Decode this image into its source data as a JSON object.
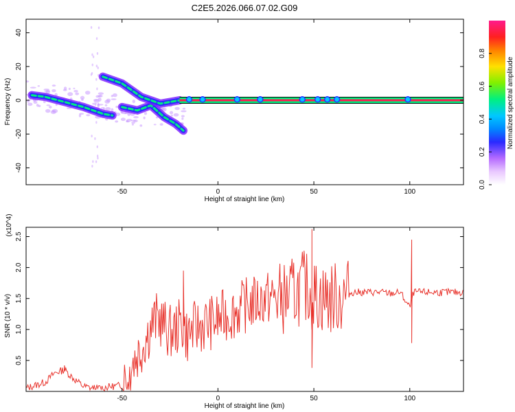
{
  "figure": {
    "title": "C2E5.2026.066.07.02.G09"
  },
  "colors": {
    "snr_line": "#e8322b",
    "colormap": [
      "#ffffff",
      "#e9c8ff",
      "#b66cff",
      "#7a1bff",
      "#2a2aff",
      "#00c8ff",
      "#00f080",
      "#b8f000",
      "#ffb000",
      "#ff2020",
      "#ff1a8c"
    ]
  },
  "chart_data": [
    {
      "type": "heatmap",
      "title": "C2E5.2026.066.07.02.G09",
      "xlabel": "Height of straight line (km)",
      "ylabel": "Frequency (Hz)",
      "xlim": [
        -100,
        128
      ],
      "ylim": [
        -50,
        48
      ],
      "xticks": [
        -50,
        0,
        50,
        100
      ],
      "yticks": [
        -40,
        -20,
        0,
        20,
        40
      ],
      "colorbar": {
        "label": "Normalized spectral amplitude",
        "range": [
          0.0,
          1.0
        ],
        "ticks": [
          0.0,
          0.2,
          0.4,
          0.6,
          0.8
        ]
      },
      "ridges": [
        {
          "name": "main-descending",
          "points": [
            [
              -97,
              3
            ],
            [
              -90,
              2
            ],
            [
              -80,
              -1
            ],
            [
              -70,
              -4
            ],
            [
              -60,
              -8
            ],
            [
              -55,
              -9
            ]
          ]
        },
        {
          "name": "lower-descending",
          "points": [
            [
              -50,
              -4
            ],
            [
              -42,
              -6
            ],
            [
              -35,
              -3
            ],
            [
              -28,
              -10
            ],
            [
              -22,
              -14
            ],
            [
              -18,
              -18
            ]
          ]
        },
        {
          "name": "upper-branch",
          "points": [
            [
              -60,
              14
            ],
            [
              -50,
              10
            ],
            [
              -40,
              2
            ],
            [
              -30,
              -2
            ],
            [
              -20,
              0
            ]
          ]
        },
        {
          "name": "steady-line",
          "points": [
            [
              -20,
              0
            ],
            [
              0,
              0
            ],
            [
              50,
              0
            ],
            [
              100,
              0
            ],
            [
              128,
              0
            ]
          ]
        }
      ]
    },
    {
      "type": "line",
      "xlabel": "Height of straight line (km)",
      "ylabel": "SNR (10 * v/v)",
      "y_multiplier": "(x10^4)",
      "xlim": [
        -100,
        128
      ],
      "ylim": [
        0,
        2.65
      ],
      "xticks": [
        -50,
        0,
        50,
        100
      ],
      "yticks": [
        0.5,
        1.0,
        1.5,
        2.0,
        2.5
      ],
      "series": [
        {
          "name": "SNR",
          "points": [
            [
              -100,
              0.05
            ],
            [
              -95,
              0.1
            ],
            [
              -90,
              0.15
            ],
            [
              -85,
              0.3
            ],
            [
              -80,
              0.35
            ],
            [
              -75,
              0.2
            ],
            [
              -70,
              0.08
            ],
            [
              -65,
              0.05
            ],
            [
              -60,
              0.06
            ],
            [
              -55,
              0.08
            ],
            [
              -50,
              0.1
            ],
            [
              -47,
              0.3
            ],
            [
              -44,
              0.5
            ],
            [
              -40,
              0.7
            ],
            [
              -37,
              0.9
            ],
            [
              -34,
              1.1
            ],
            [
              -31,
              1.2
            ],
            [
              -28,
              1.05
            ],
            [
              -25,
              0.95
            ],
            [
              -22,
              1.0
            ],
            [
              -19,
              1.1
            ],
            [
              -16,
              0.9
            ],
            [
              -13,
              1.0
            ],
            [
              -10,
              1.05
            ],
            [
              -5,
              1.1
            ],
            [
              0,
              1.15
            ],
            [
              5,
              1.25
            ],
            [
              10,
              1.3
            ],
            [
              15,
              1.4
            ],
            [
              20,
              1.45
            ],
            [
              25,
              1.5
            ],
            [
              30,
              1.52
            ],
            [
              35,
              1.5
            ],
            [
              40,
              1.6
            ],
            [
              45,
              1.7
            ],
            [
              48,
              1.62
            ],
            [
              50,
              1.55
            ],
            [
              55,
              1.5
            ],
            [
              60,
              1.5
            ],
            [
              65,
              1.52
            ],
            [
              70,
              1.6
            ],
            [
              75,
              1.6
            ],
            [
              80,
              1.6
            ],
            [
              85,
              1.6
            ],
            [
              90,
              1.58
            ],
            [
              95,
              1.6
            ],
            [
              100,
              1.35
            ],
            [
              102,
              1.6
            ],
            [
              110,
              1.6
            ],
            [
              120,
              1.6
            ],
            [
              128,
              1.6
            ]
          ]
        }
      ],
      "spikes": [
        [
          -80,
          0.42
        ],
        [
          -32,
          1.55
        ],
        [
          -18,
          1.95
        ],
        [
          25,
          1.7
        ],
        [
          49,
          2.62
        ],
        [
          49,
          0.38
        ],
        [
          101,
          2.45
        ],
        [
          101,
          0.78
        ]
      ]
    }
  ]
}
